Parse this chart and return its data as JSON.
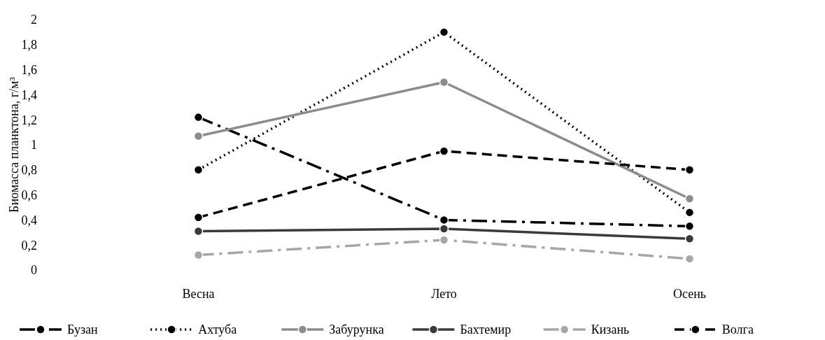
{
  "chart_data": {
    "type": "line",
    "ylabel": "Биомасса планктона, г/м³",
    "categories": [
      "Весна",
      "Лето",
      "Осень"
    ],
    "ylim": [
      0,
      2
    ],
    "yticks": [
      0,
      {
        "value": 0.2,
        "label": "0,2"
      },
      {
        "value": 0.4,
        "label": "0,4"
      },
      {
        "value": 0.6,
        "label": "0,6"
      },
      {
        "value": 0.8,
        "label": "0,8"
      },
      1,
      {
        "value": 1.2,
        "label": "1,2"
      },
      {
        "value": 1.4,
        "label": "1,4"
      },
      {
        "value": 1.6,
        "label": "1,6"
      },
      {
        "value": 1.8,
        "label": "1,8"
      },
      2
    ],
    "grid": false,
    "legend": "bottom",
    "marker": "circle",
    "series": [
      {
        "name": "Бузан",
        "color": "#000000",
        "line_style": "dashdot",
        "values": [
          1.22,
          0.4,
          0.35
        ]
      },
      {
        "name": "Ахтуба",
        "color": "#000000",
        "line_style": "dotted",
        "values": [
          0.8,
          1.9,
          0.46
        ]
      },
      {
        "name": "Забурунка",
        "color": "#8c8c8c",
        "line_style": "solid",
        "values": [
          1.07,
          1.5,
          0.57
        ]
      },
      {
        "name": "Бахтемир",
        "color": "#3a3a3a",
        "line_style": "solid",
        "values": [
          0.31,
          0.33,
          0.25
        ]
      },
      {
        "name": "Кизань",
        "color": "#a6a6a6",
        "line_style": "dashdot",
        "values": [
          0.12,
          0.24,
          0.09
        ]
      },
      {
        "name": "Волга",
        "color": "#000000",
        "line_style": "dashed",
        "values": [
          0.42,
          0.95,
          0.8
        ]
      }
    ]
  }
}
